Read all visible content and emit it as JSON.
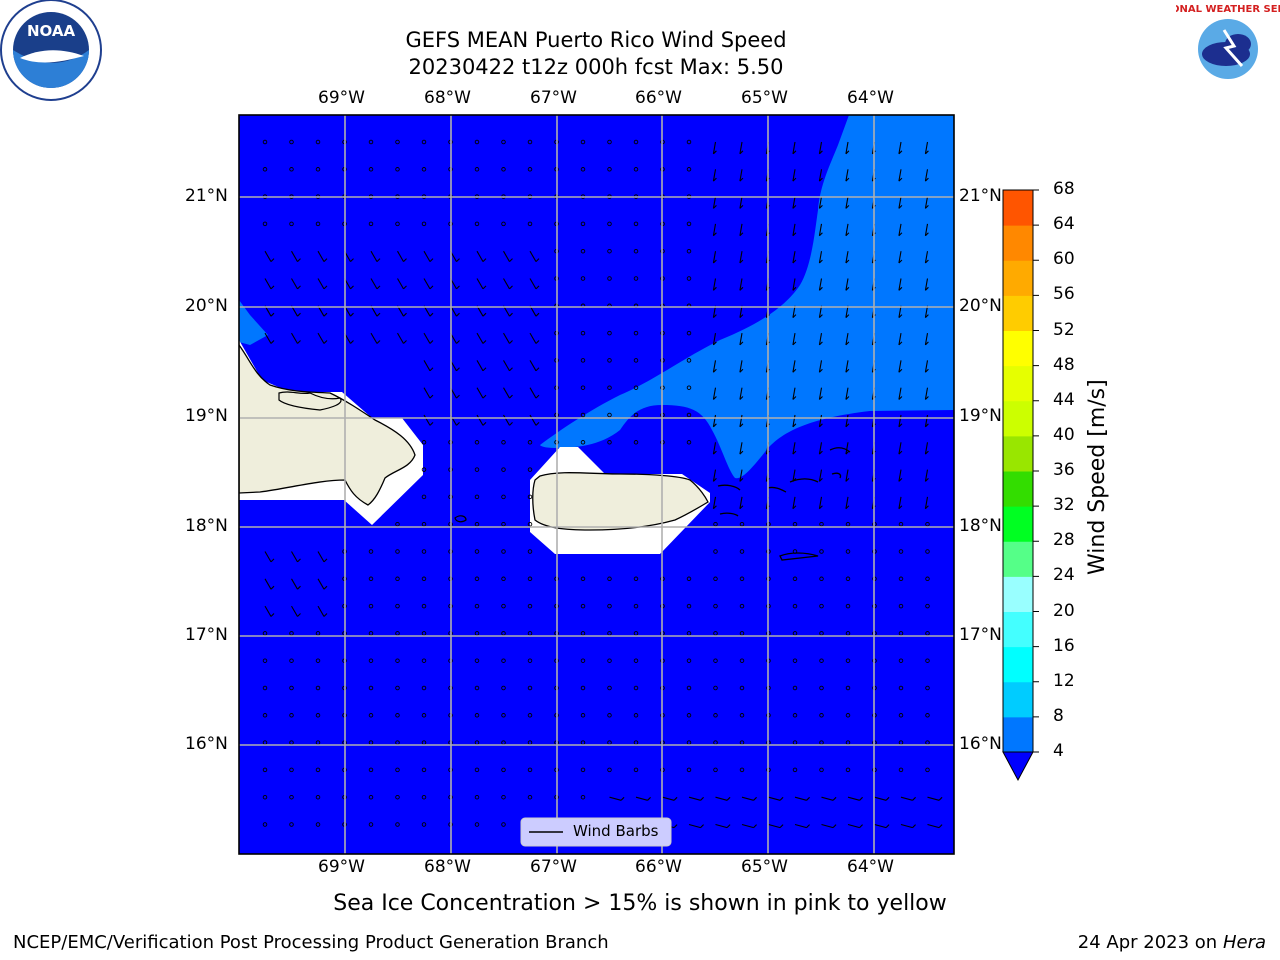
{
  "header": {
    "title_line1": "GEFS MEAN Puerto Rico Wind Speed",
    "title_line2": "20230422 t12z 000h fcst   Max: 5.50",
    "noara_logo_text": "NOAA",
    "nws_logo_text": "NATIONAL WEATHER SERVICE"
  },
  "map": {
    "region": "Puerto Rico",
    "lon_ticks": [
      "69°W",
      "68°W",
      "67°W",
      "66°W",
      "65°W",
      "64°W"
    ],
    "lat_ticks": [
      "21°N",
      "20°N",
      "19°N",
      "18°N",
      "17°N",
      "16°N"
    ],
    "legend_label": "Wind Barbs",
    "colors": {
      "ocean_low": "#0000ff",
      "ocean_mid": "#0077ff",
      "land": "#efeedc",
      "grid": "#b0b0b0"
    }
  },
  "colorbar": {
    "label": "Wind Speed [m/s]",
    "ticks": [
      "4",
      "8",
      "12",
      "16",
      "20",
      "24",
      "28",
      "32",
      "36",
      "40",
      "44",
      "48",
      "52",
      "56",
      "60",
      "64",
      "68"
    ],
    "colors": [
      "#0077ff",
      "#00ccff",
      "#00ffff",
      "#44ffff",
      "#99ffff",
      "#55ff88",
      "#00ff22",
      "#33dd00",
      "#99e600",
      "#ccff00",
      "#e6ff00",
      "#ffff00",
      "#ffcc00",
      "#ffaa00",
      "#ff8800",
      "#ff5500",
      "#ff2200",
      "#ff0000"
    ],
    "extend_color": "#0000ff"
  },
  "caption": "Sea Ice Concentration > 15% is shown in pink to yellow",
  "footer": {
    "left": "NCEP/EMC/Verification Post Processing Product Generation Branch",
    "date": "24 Apr 2023 on ",
    "machine": "Hera"
  }
}
